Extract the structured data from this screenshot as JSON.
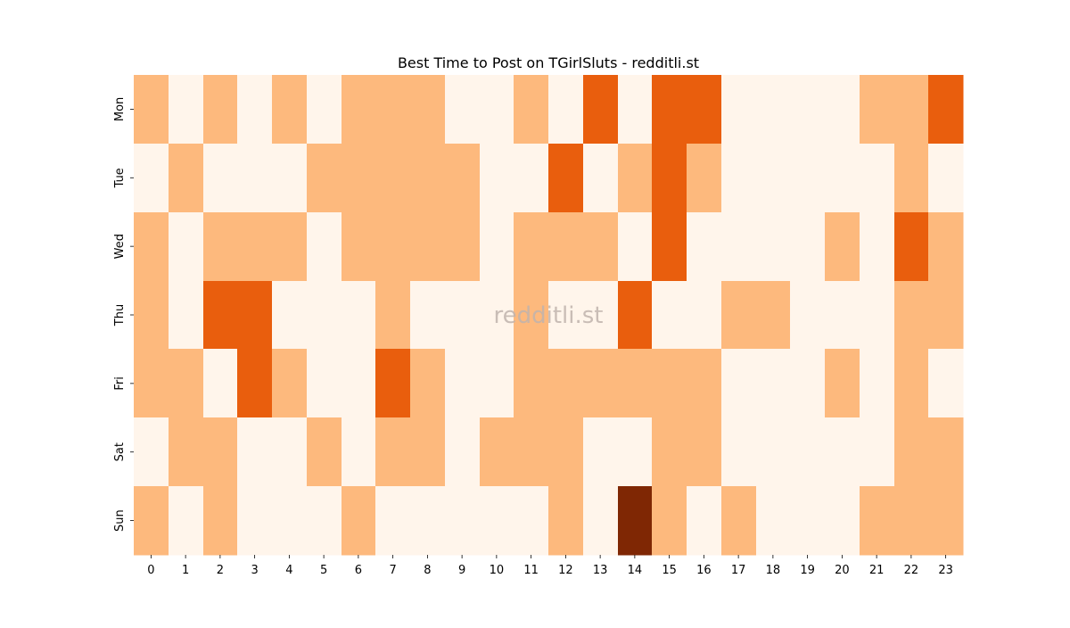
{
  "chart_data": {
    "type": "heatmap",
    "title": "Best Time to Post on TGirlSluts - redditli.st",
    "xlabel": "",
    "ylabel": "",
    "x_categories": [
      "0",
      "1",
      "2",
      "3",
      "4",
      "5",
      "6",
      "7",
      "8",
      "9",
      "10",
      "11",
      "12",
      "13",
      "14",
      "15",
      "16",
      "17",
      "18",
      "19",
      "20",
      "21",
      "22",
      "23"
    ],
    "y_categories": [
      "Mon",
      "Tue",
      "Wed",
      "Thu",
      "Fri",
      "Sat",
      "Sun"
    ],
    "values": [
      [
        1,
        0,
        1,
        0,
        1,
        0,
        1,
        1,
        1,
        0,
        0,
        1,
        0,
        2,
        0,
        2,
        2,
        0,
        0,
        0,
        0,
        1,
        1,
        2
      ],
      [
        0,
        1,
        0,
        0,
        0,
        1,
        1,
        1,
        1,
        1,
        0,
        0,
        2,
        0,
        1,
        2,
        1,
        0,
        0,
        0,
        0,
        0,
        1,
        0
      ],
      [
        1,
        0,
        1,
        1,
        1,
        0,
        1,
        1,
        1,
        1,
        0,
        1,
        1,
        1,
        0,
        2,
        0,
        0,
        0,
        0,
        1,
        0,
        2,
        1
      ],
      [
        1,
        0,
        2,
        2,
        0,
        0,
        0,
        1,
        0,
        0,
        0,
        1,
        0,
        0,
        2,
        0,
        0,
        1,
        1,
        0,
        0,
        0,
        1,
        1
      ],
      [
        1,
        1,
        0,
        2,
        1,
        0,
        0,
        2,
        1,
        0,
        0,
        1,
        1,
        1,
        1,
        1,
        1,
        0,
        0,
        0,
        1,
        0,
        1,
        0
      ],
      [
        0,
        1,
        1,
        0,
        0,
        1,
        0,
        1,
        1,
        0,
        1,
        1,
        1,
        0,
        0,
        1,
        1,
        0,
        0,
        0,
        0,
        0,
        1,
        1
      ],
      [
        1,
        0,
        1,
        0,
        0,
        0,
        1,
        0,
        0,
        0,
        0,
        0,
        1,
        0,
        3,
        1,
        0,
        1,
        0,
        0,
        0,
        1,
        1,
        1
      ]
    ],
    "vmin": 0,
    "vmax": 3,
    "colormap": "Oranges",
    "color_levels": [
      "#fff5eb",
      "#fdb97d",
      "#e95e0d",
      "#7f2704"
    ],
    "grid": false,
    "colorbar": false,
    "watermark": "redditli.st"
  }
}
